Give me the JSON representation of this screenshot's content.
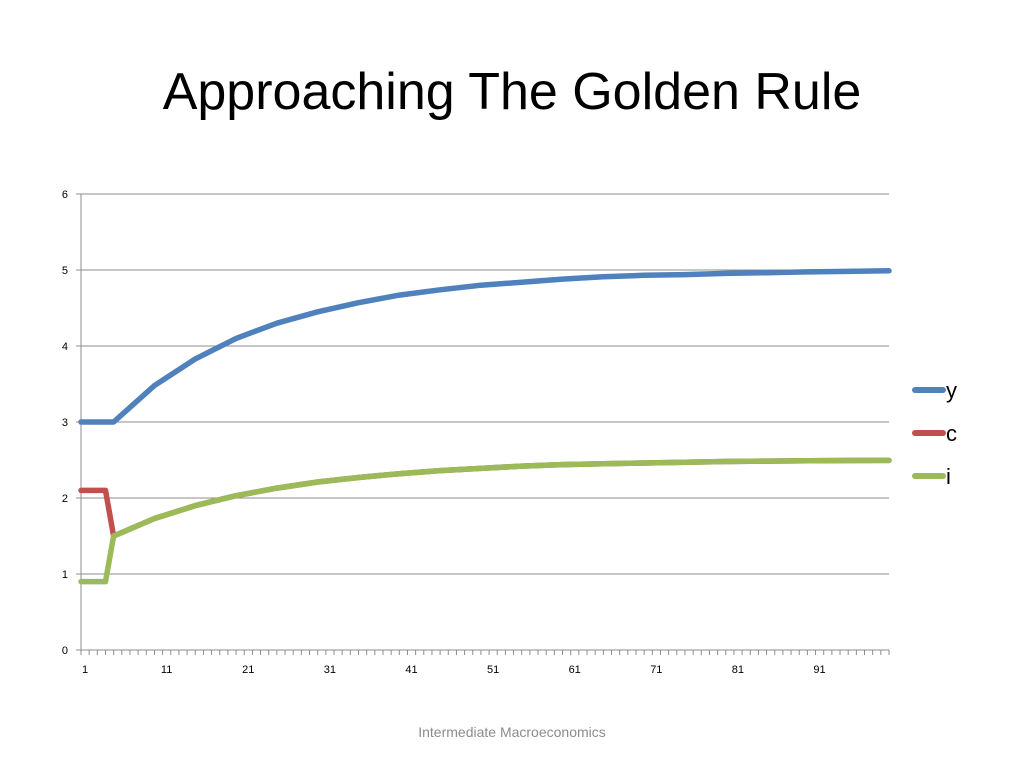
{
  "slide": {
    "title": "Approaching The Golden Rule",
    "footer": "Intermediate Macroeconomics"
  },
  "chart_data": {
    "type": "line",
    "title": "",
    "xlabel": "",
    "ylabel": "",
    "ylim": [
      0,
      6
    ],
    "yticks": [
      "0",
      "1",
      "2",
      "3",
      "4",
      "5",
      "6"
    ],
    "xlim": [
      1,
      100
    ],
    "xticks": [
      "1",
      "11",
      "21",
      "31",
      "41",
      "51",
      "61",
      "71",
      "81",
      "91"
    ],
    "grid": "horizontal",
    "legend_position": "right",
    "series": [
      {
        "name": "y",
        "color": "#4f81bd",
        "points": [
          [
            1,
            3.0
          ],
          [
            5,
            3.0
          ],
          [
            10,
            3.48
          ],
          [
            15,
            3.83
          ],
          [
            20,
            4.1
          ],
          [
            25,
            4.3
          ],
          [
            30,
            4.45
          ],
          [
            35,
            4.57
          ],
          [
            40,
            4.67
          ],
          [
            45,
            4.74
          ],
          [
            50,
            4.8
          ],
          [
            55,
            4.84
          ],
          [
            60,
            4.88
          ],
          [
            65,
            4.91
          ],
          [
            70,
            4.93
          ],
          [
            75,
            4.94
          ],
          [
            80,
            4.955
          ],
          [
            85,
            4.965
          ],
          [
            90,
            4.975
          ],
          [
            95,
            4.982
          ],
          [
            100,
            4.99
          ]
        ]
      },
      {
        "name": "c",
        "color": "#c0504d",
        "points": [
          [
            1,
            2.1
          ],
          [
            4,
            2.1
          ],
          [
            5,
            1.5
          ],
          [
            10,
            1.73
          ],
          [
            15,
            1.9
          ],
          [
            20,
            2.03
          ],
          [
            25,
            2.13
          ],
          [
            30,
            2.21
          ],
          [
            35,
            2.27
          ],
          [
            40,
            2.32
          ],
          [
            45,
            2.36
          ],
          [
            50,
            2.39
          ],
          [
            55,
            2.42
          ],
          [
            60,
            2.44
          ],
          [
            65,
            2.45
          ],
          [
            70,
            2.46
          ],
          [
            75,
            2.47
          ],
          [
            80,
            2.48
          ],
          [
            85,
            2.485
          ],
          [
            90,
            2.49
          ],
          [
            95,
            2.493
          ],
          [
            100,
            2.495
          ]
        ]
      },
      {
        "name": "i",
        "color": "#9bbb59",
        "points": [
          [
            1,
            0.9
          ],
          [
            4,
            0.9
          ],
          [
            5,
            1.5
          ],
          [
            10,
            1.73
          ],
          [
            15,
            1.9
          ],
          [
            20,
            2.03
          ],
          [
            25,
            2.13
          ],
          [
            30,
            2.21
          ],
          [
            35,
            2.27
          ],
          [
            40,
            2.32
          ],
          [
            45,
            2.36
          ],
          [
            50,
            2.39
          ],
          [
            55,
            2.42
          ],
          [
            60,
            2.44
          ],
          [
            65,
            2.45
          ],
          [
            70,
            2.46
          ],
          [
            75,
            2.47
          ],
          [
            80,
            2.48
          ],
          [
            85,
            2.485
          ],
          [
            90,
            2.49
          ],
          [
            95,
            2.493
          ],
          [
            100,
            2.495
          ]
        ]
      }
    ]
  }
}
